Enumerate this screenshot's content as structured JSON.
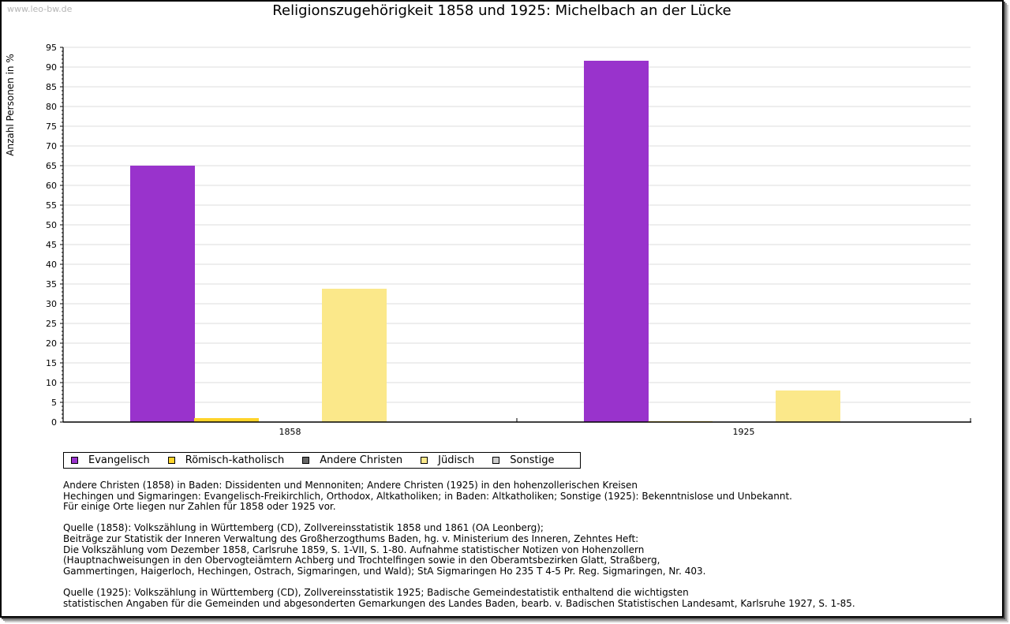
{
  "watermark": "www.leo-bw.de",
  "chart_data": {
    "type": "bar",
    "title": "Religionszugehörigkeit 1858 und 1925: Michelbach an der Lücke",
    "xlabel": "",
    "ylabel": "Anzahl Personen in %",
    "ylim": [
      0,
      95
    ],
    "yticks": [
      0,
      5,
      10,
      15,
      20,
      25,
      30,
      35,
      40,
      45,
      50,
      55,
      60,
      65,
      70,
      75,
      80,
      85,
      90,
      95
    ],
    "grid": true,
    "legend_position": "bottom-left",
    "categories": [
      "1858",
      "1925"
    ],
    "series": [
      {
        "name": "Evangelisch",
        "color": "#9933cc",
        "values": [
          65.0,
          91.6
        ]
      },
      {
        "name": "Römisch-katholisch",
        "color": "#ffd42a",
        "values": [
          1.0,
          0.2
        ]
      },
      {
        "name": "Andere Christen",
        "color": "#666666",
        "values": [
          0,
          0
        ]
      },
      {
        "name": "Jüdisch",
        "color": "#fbe88a",
        "values": [
          33.8,
          8.0
        ]
      },
      {
        "name": "Sonstige",
        "color": "#cccccc",
        "values": [
          0,
          0
        ]
      }
    ]
  },
  "notes": [
    [
      "Andere Christen (1858) in Baden: Dissidenten und Mennoniten; Andere Christen (1925) in den hohenzollerischen Kreisen",
      "Hechingen und Sigmaringen: Evangelisch-Freikirchlich, Orthodox, Altkatholiken; in Baden: Altkatholiken; Sonstige (1925): Bekenntnislose und Unbekannt.",
      "Für einige Orte liegen nur Zahlen für 1858 oder 1925 vor."
    ],
    [
      "Quelle (1858): Volkszählung in Württemberg (CD), Zollvereinsstatistik 1858 und 1861 (OA Leonberg);",
      "Beiträge zur Statistik der Inneren Verwaltung des Großherzogthums Baden, hg. v. Ministerium des Inneren, Zehntes Heft:",
      "Die Volkszählung vom Dezember 1858, Carlsruhe 1859, S. 1-VII, S. 1-80. Aufnahme statistischer Notizen von Hohenzollern",
      "(Hauptnachweisungen in den Obervogteiämtern Achberg und Trochtelfingen sowie in den Oberamtsbezirken Glatt, Straßberg,",
      "Gammertingen, Haigerloch, Hechingen, Ostrach, Sigmaringen, und Wald); StA Sigmaringen Ho 235 T 4-5 Pr. Reg. Sigmaringen, Nr. 403."
    ],
    [
      "Quelle (1925): Volkszählung in Württemberg (CD), Zollvereinsstatistik 1925; Badische Gemeindestatistik enthaltend die wichtigsten",
      "statistischen Angaben für die Gemeinden und abgesonderten Gemarkungen des Landes Baden, bearb. v. Badischen Statistischen Landesamt, Karlsruhe 1927, S. 1-85."
    ]
  ]
}
